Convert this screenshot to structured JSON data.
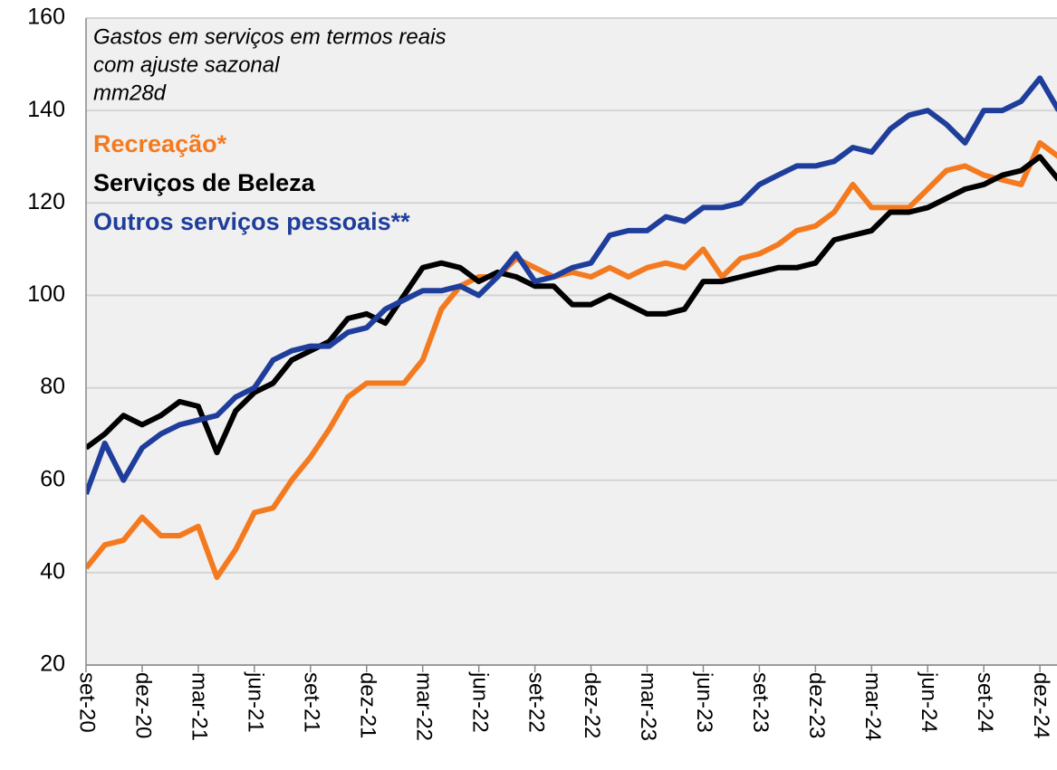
{
  "chart_data": {
    "type": "line",
    "title": [
      "Gastos em serviços em termos reais",
      "com ajuste sazonal",
      "mm28d"
    ],
    "categories": [
      "set-20",
      null,
      null,
      "dez-20",
      null,
      null,
      "mar-21",
      null,
      null,
      "jun-21",
      null,
      null,
      "set-21",
      null,
      null,
      "dez-21",
      null,
      null,
      "mar-22",
      null,
      null,
      "jun-22",
      null,
      null,
      "set-22",
      null,
      null,
      "dez-22",
      null,
      null,
      "mar-23",
      null,
      null,
      "jun-23",
      null,
      null,
      "set-23",
      null,
      null,
      "dez-23",
      null,
      null,
      "mar-24",
      null,
      null,
      "jun-24",
      null,
      null,
      "set-24",
      null,
      null,
      "dez-24",
      null
    ],
    "series": [
      {
        "name": "Recreação*",
        "color": "#f47a20",
        "values": [
          41,
          46,
          47,
          52,
          48,
          48,
          50,
          39,
          45,
          53,
          54,
          60,
          65,
          71,
          78,
          81,
          81,
          81,
          86,
          97,
          102,
          104,
          104,
          108,
          106,
          104,
          105,
          104,
          106,
          104,
          106,
          107,
          106,
          110,
          104,
          108,
          109,
          111,
          114,
          115,
          118,
          124,
          119,
          119,
          119,
          123,
          127,
          128,
          126,
          125,
          124,
          133,
          130
        ]
      },
      {
        "name": "Serviços de Beleza",
        "color": "#000000",
        "values": [
          67,
          70,
          74,
          72,
          74,
          77,
          76,
          66,
          75,
          79,
          81,
          86,
          88,
          90,
          95,
          96,
          94,
          100,
          106,
          107,
          106,
          103,
          105,
          104,
          102,
          102,
          98,
          98,
          100,
          98,
          96,
          96,
          97,
          103,
          103,
          104,
          105,
          106,
          106,
          107,
          112,
          113,
          114,
          118,
          118,
          119,
          121,
          123,
          124,
          126,
          127,
          130,
          125
        ]
      },
      {
        "name": "Outros serviços pessoais**",
        "color": "#1f3e9c",
        "values": [
          57,
          68,
          60,
          67,
          70,
          72,
          73,
          74,
          78,
          80,
          86,
          88,
          89,
          89,
          92,
          93,
          97,
          99,
          101,
          101,
          102,
          100,
          104,
          109,
          103,
          104,
          106,
          107,
          113,
          114,
          114,
          117,
          116,
          119,
          119,
          120,
          124,
          126,
          128,
          128,
          129,
          132,
          131,
          136,
          139,
          140,
          137,
          133,
          140,
          140,
          142,
          147,
          140
        ]
      }
    ],
    "ylim": [
      20,
      160
    ],
    "yticks": [
      20,
      40,
      60,
      80,
      100,
      120,
      140,
      160
    ],
    "grid": true
  }
}
